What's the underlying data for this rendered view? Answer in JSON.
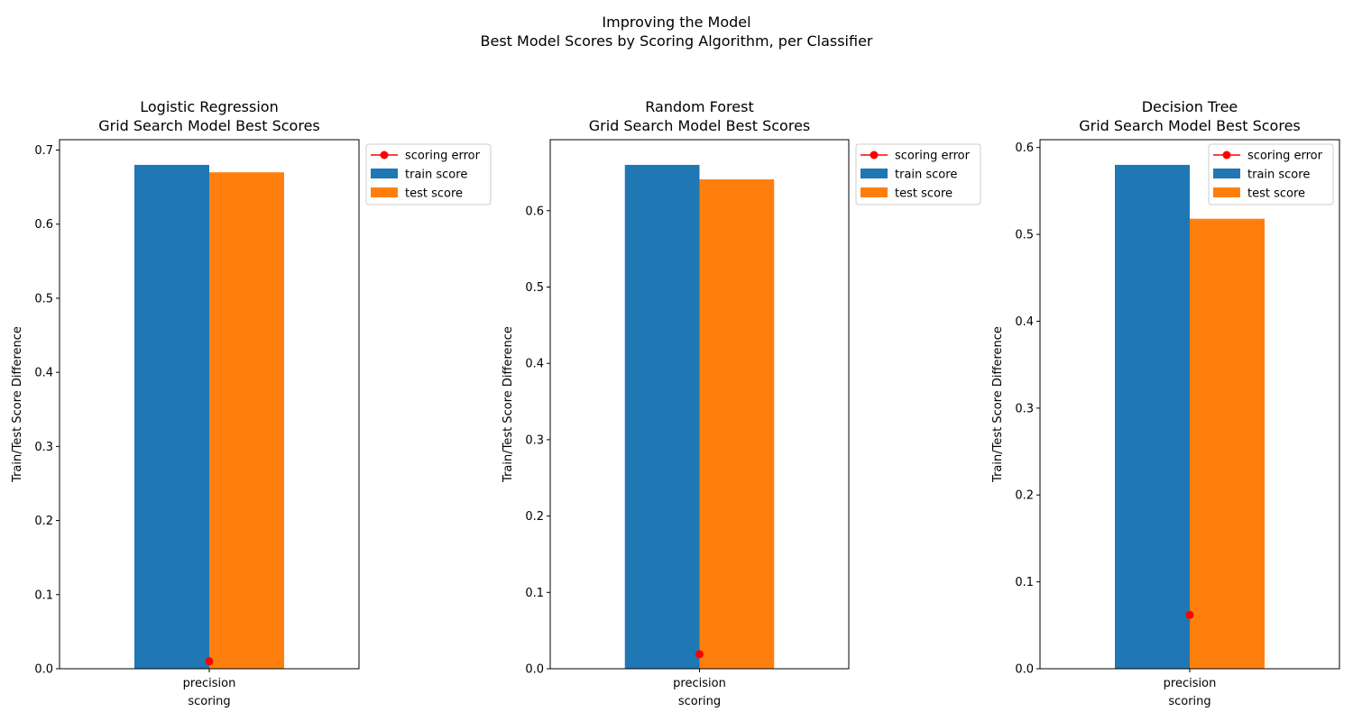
{
  "suptitle": [
    "Improving the Model",
    "Best Model Scores by Scoring Algorithm, per Classifier"
  ],
  "colors": {
    "train": "#1f77b4",
    "test": "#ff7f0e",
    "error": "#ff0000"
  },
  "legend_labels": [
    "scoring error",
    "train score",
    "test score"
  ],
  "chart_data": [
    {
      "type": "bar",
      "title": [
        "Logistic Regression",
        "Grid Search Model Best Scores"
      ],
      "xlabel": "scoring",
      "ylabel": "Train/Test Score Difference",
      "categories": [
        "precision"
      ],
      "series": [
        {
          "name": "train score",
          "values": [
            0.68
          ]
        },
        {
          "name": "test score",
          "values": [
            0.67
          ]
        }
      ],
      "line_series": {
        "name": "scoring error",
        "values": [
          0.01
        ]
      },
      "ylim": [
        0,
        0.714
      ],
      "yticks": [
        0.0,
        0.1,
        0.2,
        0.3,
        0.4,
        0.5,
        0.6,
        0.7
      ],
      "ytick_labels": [
        "0.0",
        "0.1",
        "0.2",
        "0.3",
        "0.4",
        "0.5",
        "0.6",
        "0.7"
      ],
      "legend_loc": "outside-upper-right",
      "grid": false
    },
    {
      "type": "bar",
      "title": [
        "Random Forest",
        "Grid Search Model Best Scores"
      ],
      "xlabel": "scoring",
      "ylabel": "Train/Test Score Difference",
      "categories": [
        "precision"
      ],
      "series": [
        {
          "name": "train score",
          "values": [
            0.66
          ]
        },
        {
          "name": "test score",
          "values": [
            0.641
          ]
        }
      ],
      "line_series": {
        "name": "scoring error",
        "values": [
          0.019
        ]
      },
      "ylim": [
        0,
        0.693
      ],
      "yticks": [
        0.0,
        0.1,
        0.2,
        0.3,
        0.4,
        0.5,
        0.6
      ],
      "ytick_labels": [
        "0.0",
        "0.1",
        "0.2",
        "0.3",
        "0.4",
        "0.5",
        "0.6"
      ],
      "legend_loc": "outside-upper-right",
      "grid": false
    },
    {
      "type": "bar",
      "title": [
        "Decision Tree",
        "Grid Search Model Best Scores"
      ],
      "xlabel": "scoring",
      "ylabel": "Train/Test Score Difference",
      "categories": [
        "precision"
      ],
      "series": [
        {
          "name": "train score",
          "values": [
            0.58
          ]
        },
        {
          "name": "test score",
          "values": [
            0.518
          ]
        }
      ],
      "line_series": {
        "name": "scoring error",
        "values": [
          0.062
        ]
      },
      "ylim": [
        0,
        0.609
      ],
      "yticks": [
        0.0,
        0.1,
        0.2,
        0.3,
        0.4,
        0.5,
        0.6
      ],
      "ytick_labels": [
        "0.0",
        "0.1",
        "0.2",
        "0.3",
        "0.4",
        "0.5",
        "0.6"
      ],
      "legend_loc": "upper-right",
      "grid": false
    }
  ]
}
